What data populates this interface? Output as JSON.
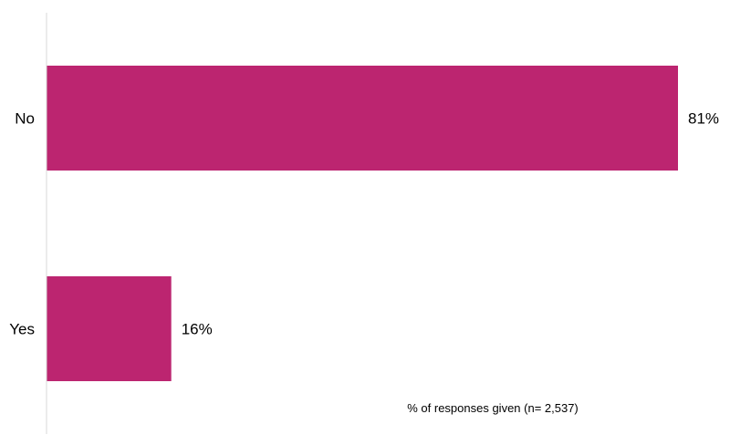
{
  "chart_data": {
    "type": "bar",
    "orientation": "horizontal",
    "categories": [
      "No",
      "Yes"
    ],
    "values": [
      81,
      16
    ],
    "value_labels": [
      "81%",
      "16%"
    ],
    "xlabel": "% of responses given (n= 2,537)",
    "ylabel": "",
    "title": "",
    "xlim": [
      0,
      100
    ],
    "grid": false,
    "legend": "none",
    "bar_color": "#BC2570",
    "axis_color": "#D9D9D9"
  }
}
